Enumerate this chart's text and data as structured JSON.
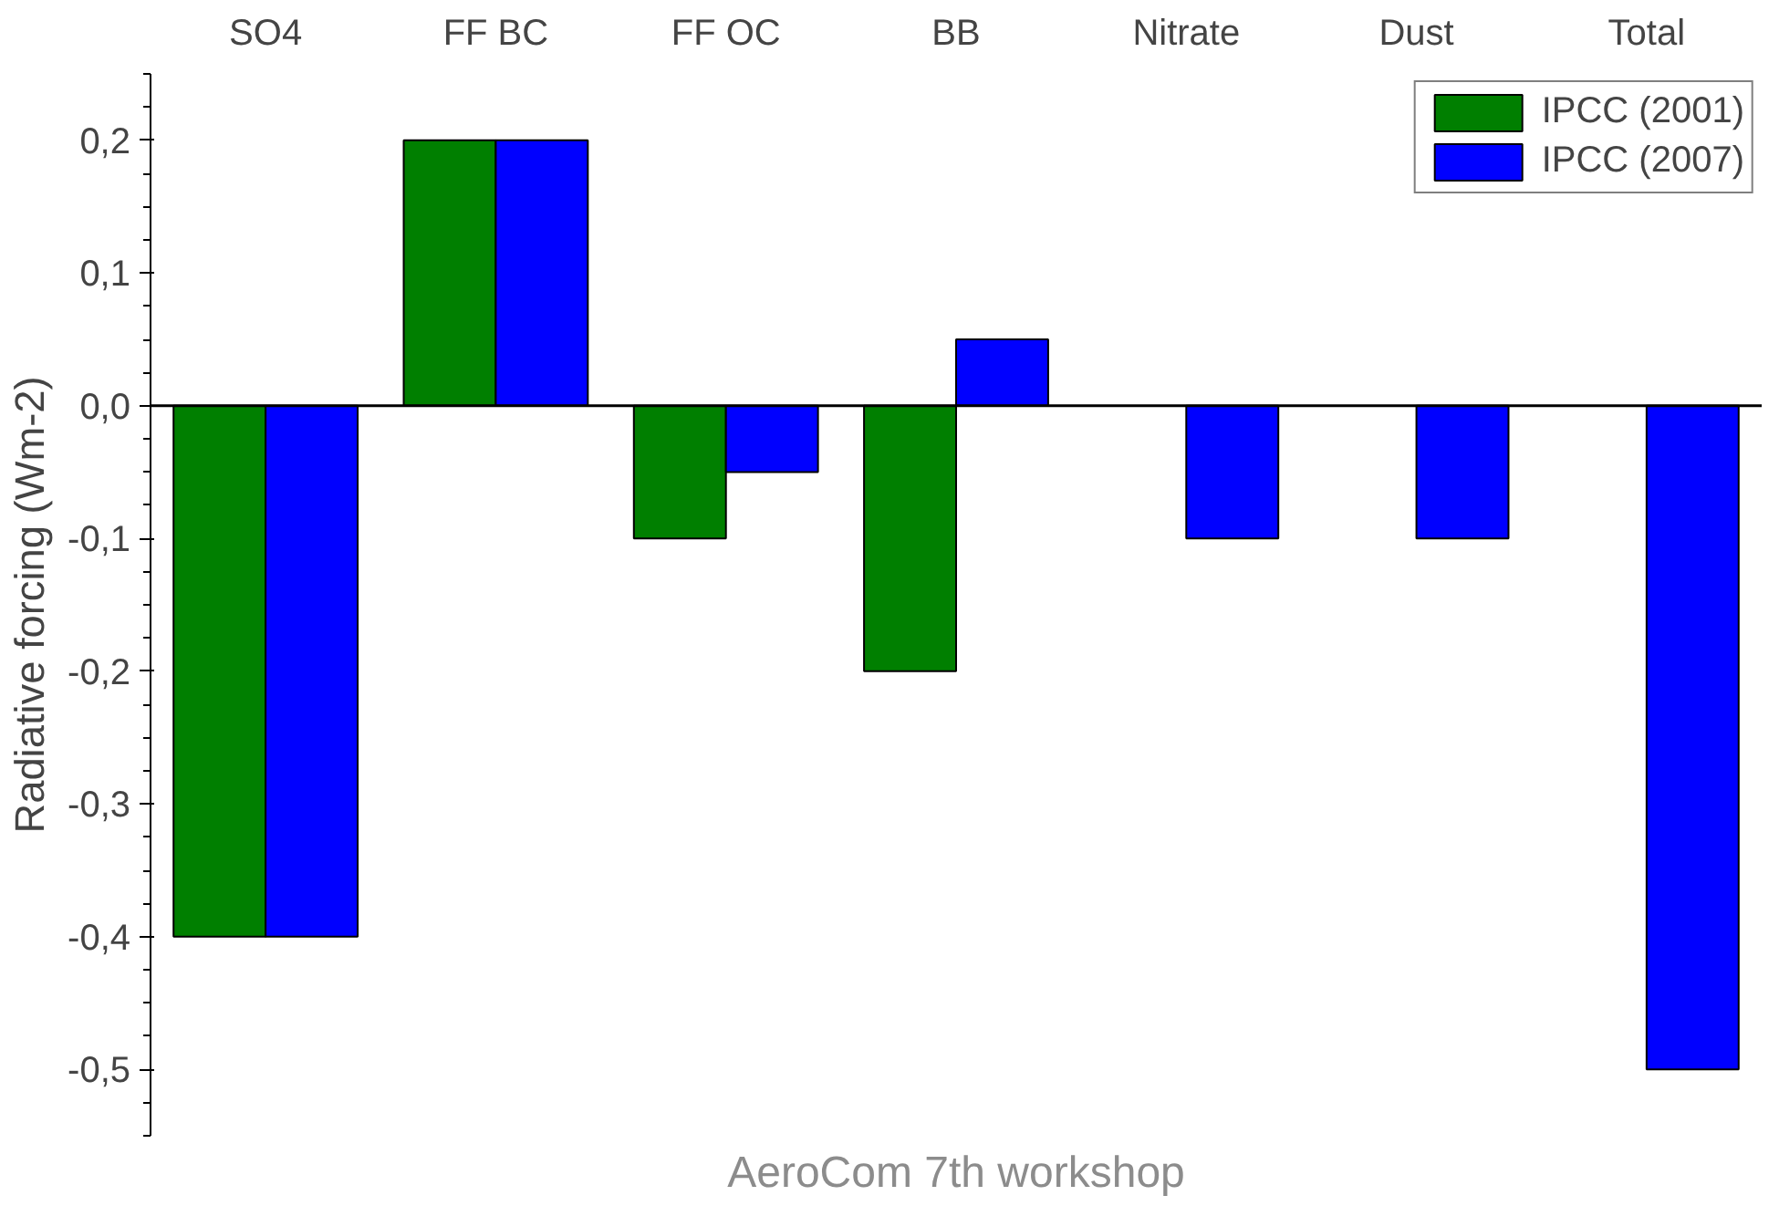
{
  "chart_data": {
    "type": "bar",
    "categories": [
      "SO4",
      "FF BC",
      "FF OC",
      "BB",
      "Nitrate",
      "Dust",
      "Total"
    ],
    "series": [
      {
        "name": "IPCC (2001)",
        "color": "#007f00",
        "values": [
          -0.4,
          0.2,
          -0.1,
          -0.2,
          null,
          null,
          null
        ]
      },
      {
        "name": "IPCC (2007)",
        "color": "#0000ff",
        "values": [
          -0.4,
          0.2,
          -0.05,
          0.05,
          -0.1,
          -0.1,
          -0.5
        ]
      }
    ],
    "ylabel": "Radiative forcing (Wm-2)",
    "ylim": [
      -0.55,
      0.25
    ],
    "yticks": [
      {
        "value": -0.5,
        "label": "-0,5"
      },
      {
        "value": -0.4,
        "label": "-0,4"
      },
      {
        "value": -0.3,
        "label": "-0,3"
      },
      {
        "value": -0.2,
        "label": "-0,2"
      },
      {
        "value": -0.1,
        "label": "-0,1"
      },
      {
        "value": 0,
        "label": "0,0"
      },
      {
        "value": 0.1,
        "label": "0,1"
      },
      {
        "value": 0.2,
        "label": "0,2"
      }
    ],
    "annotations": [
      "AeroCom 7th workshop"
    ],
    "legend": "top right"
  }
}
